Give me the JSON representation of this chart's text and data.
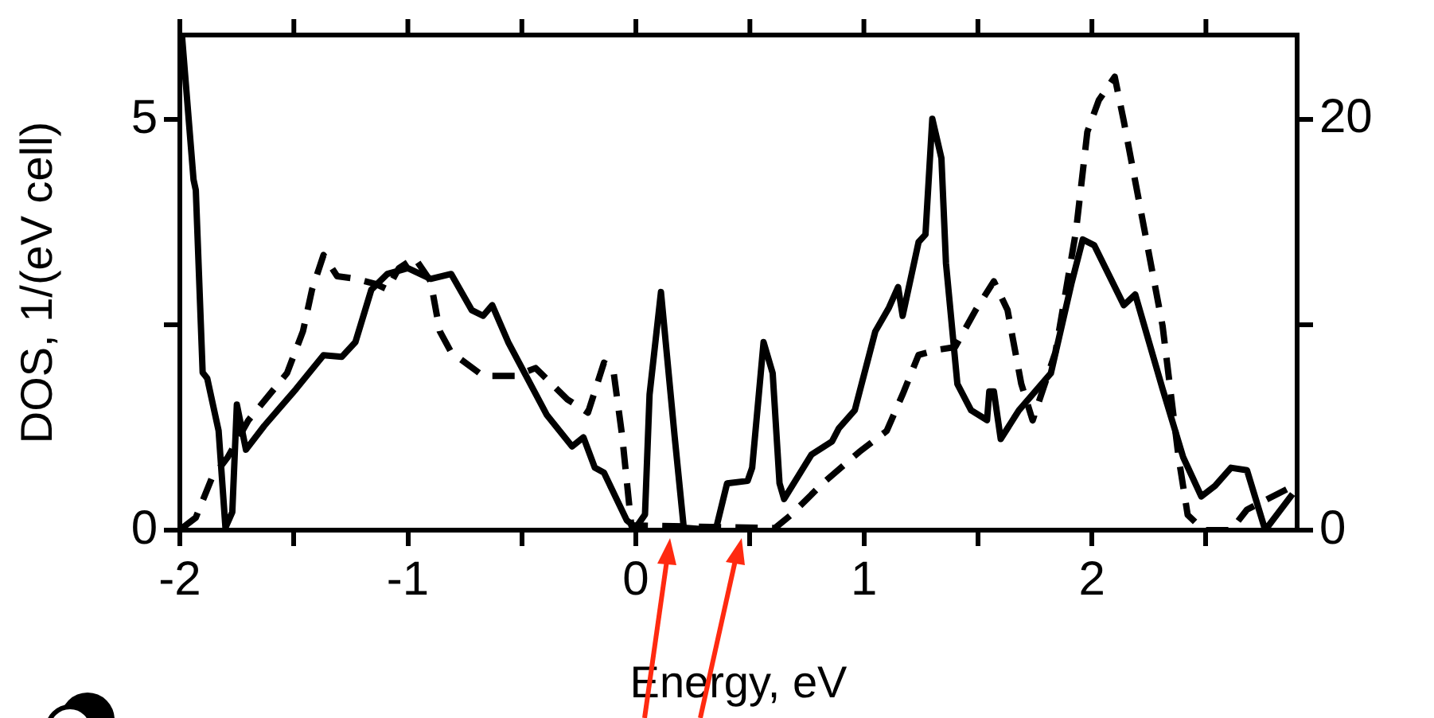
{
  "chart_data": {
    "type": "line",
    "xlabel": "Energy, eV",
    "ylabel": "DOS, 1/(eV cell)",
    "xlim": [
      -2,
      2.9
    ],
    "xticks": [
      -2,
      {
        "value": -1.5,
        "label": null
      },
      -1,
      {
        "value": -0.5,
        "label": null
      },
      0,
      {
        "value": 0.5,
        "label": null
      },
      1,
      {
        "value": 1.5,
        "label": null
      },
      2,
      {
        "value": 2.5,
        "label": null
      }
    ],
    "ylim": [
      0,
      6.03
    ],
    "yticks": [
      0,
      {
        "value": 2.5,
        "label": null
      },
      5
    ],
    "y2lim": [
      0,
      24.1
    ],
    "y2ticks": [
      0,
      {
        "value": 10,
        "label": null
      },
      20
    ],
    "grid": false,
    "legend": false,
    "marker": "none",
    "series": [
      {
        "color": "#000000",
        "line_style": "solid",
        "x": [
          -1.99,
          -1.94,
          -1.93,
          -1.9,
          -1.88,
          -1.83,
          -1.8,
          -1.77,
          -1.75,
          -1.71,
          -1.63,
          -1.49,
          -1.37,
          -1.29,
          -1.23,
          -1.16,
          -1.09,
          -1.0,
          -0.9,
          -0.81,
          -0.72,
          -0.67,
          -0.63,
          -0.56,
          -0.39,
          -0.28,
          -0.23,
          -0.18,
          -0.14,
          -0.04,
          0.0,
          0.04,
          0.06,
          0.11,
          0.17,
          0.21,
          0.35,
          0.4,
          0.49,
          0.51,
          0.56,
          0.6,
          0.63,
          0.65,
          0.77,
          0.86,
          0.89,
          0.96,
          1.05,
          1.11,
          1.15,
          1.17,
          1.24,
          1.27,
          1.3,
          1.34,
          1.36,
          1.41,
          1.47,
          1.54,
          1.55,
          1.57,
          1.6,
          1.68,
          1.82,
          1.91,
          1.96,
          2.01,
          2.14,
          2.19,
          2.31,
          2.4,
          2.48,
          2.54,
          2.61,
          2.68,
          2.76,
          2.88
        ],
        "values": [
          6.0,
          4.27,
          4.14,
          1.92,
          1.85,
          1.21,
          0.03,
          0.22,
          1.53,
          0.98,
          1.27,
          1.72,
          2.13,
          2.11,
          2.29,
          2.93,
          3.12,
          3.19,
          3.06,
          3.12,
          2.68,
          2.61,
          2.74,
          2.29,
          1.4,
          1.02,
          1.13,
          0.76,
          0.7,
          0.12,
          0.03,
          0.19,
          1.65,
          2.9,
          1.14,
          0.03,
          0.0,
          0.57,
          0.6,
          0.76,
          2.29,
          1.91,
          0.57,
          0.38,
          0.92,
          1.08,
          1.24,
          1.46,
          2.42,
          2.71,
          2.96,
          2.61,
          3.51,
          3.6,
          5.01,
          4.53,
          3.25,
          1.78,
          1.46,
          1.34,
          1.69,
          1.69,
          1.11,
          1.46,
          1.91,
          3.0,
          3.54,
          3.47,
          2.74,
          2.87,
          1.72,
          0.89,
          0.41,
          0.54,
          0.76,
          0.73,
          0.0,
          0.44
        ]
      },
      {
        "color": "#000000",
        "line_style": "dashed",
        "axis": "y2",
        "x": [
          -1.99,
          -1.93,
          -1.86,
          -1.79,
          -1.7,
          -1.53,
          -1.46,
          -1.42,
          -1.37,
          -1.31,
          -1.23,
          -1.14,
          -1.09,
          -1.04,
          -0.97,
          -0.9,
          -0.86,
          -0.81,
          -0.67,
          -0.53,
          -0.44,
          -0.3,
          -0.21,
          -0.14,
          -0.1,
          -0.06,
          -0.02,
          0.61,
          0.68,
          0.82,
          0.98,
          1.1,
          1.17,
          1.24,
          1.33,
          1.4,
          1.49,
          1.57,
          1.63,
          1.69,
          1.74,
          1.84,
          1.93,
          1.98,
          2.03,
          2.1,
          2.14,
          2.21,
          2.31,
          2.38,
          2.42,
          2.49,
          2.61,
          2.68,
          2.77,
          2.86
        ],
        "values": [
          0.1,
          0.61,
          2.53,
          3.55,
          5.34,
          7.64,
          9.68,
          11.72,
          13.39,
          12.36,
          12.24,
          11.98,
          11.72,
          12.74,
          13.26,
          12.11,
          9.68,
          8.66,
          7.51,
          7.51,
          7.89,
          6.36,
          5.72,
          8.15,
          7.89,
          4.57,
          0.23,
          0.1,
          0.74,
          2.28,
          3.81,
          4.83,
          6.61,
          8.53,
          8.79,
          8.91,
          10.71,
          12.11,
          10.71,
          7.13,
          5.34,
          8.66,
          14.54,
          19.39,
          20.92,
          22.07,
          19.9,
          15.81,
          9.94,
          3.55,
          0.74,
          0.0,
          0.0,
          1.0,
          1.51,
          2.02
        ]
      }
    ]
  }
}
